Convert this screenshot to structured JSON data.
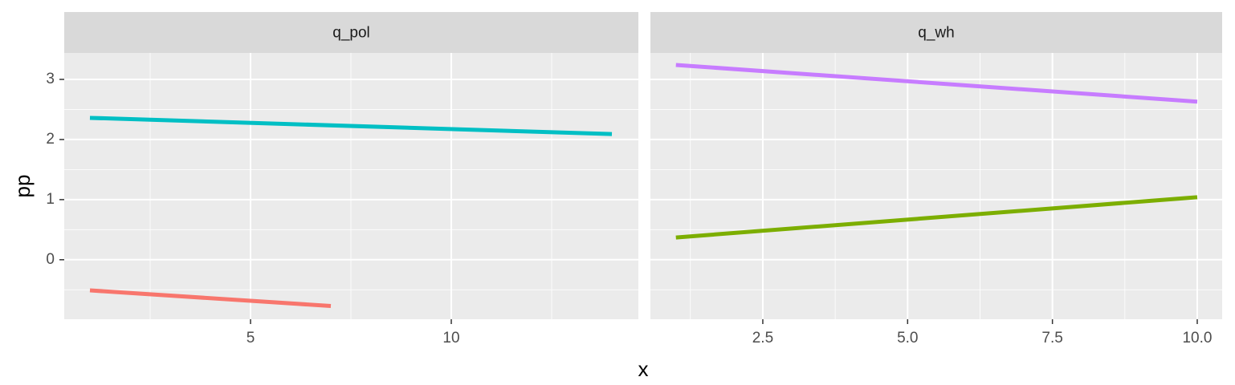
{
  "chart_data": [
    {
      "type": "line",
      "title": "q_pol",
      "series": [
        {
          "color": "#F8766D",
          "x": [
            1,
            7
          ],
          "values": [
            -0.51,
            -0.77
          ]
        },
        {
          "color": "#00BFC4",
          "x": [
            1,
            14
          ],
          "values": [
            2.36,
            2.09
          ]
        }
      ],
      "xlim": [
        0.36,
        14.66
      ],
      "xticks": [
        5,
        10
      ],
      "ylim": [
        -0.99,
        3.44
      ],
      "yticks": [
        0,
        1,
        2,
        3
      ]
    },
    {
      "type": "line",
      "title": "q_wh",
      "series": [
        {
          "color": "#C77CFF",
          "x": [
            1,
            10
          ],
          "values": [
            3.24,
            2.63
          ]
        },
        {
          "color": "#7CAE00",
          "x": [
            1,
            10
          ],
          "values": [
            0.37,
            1.04
          ]
        }
      ],
      "xlim": [
        0.56,
        10.43
      ],
      "xticks": [
        2.5,
        {
          "value": 5,
          "label": "5.0"
        },
        7.5,
        {
          "value": 10,
          "label": "10.0"
        }
      ],
      "ylim": [
        -0.99,
        3.44
      ],
      "yticks": [
        0,
        1,
        2,
        3
      ]
    }
  ],
  "xlabel": "x",
  "ylabel": "pp"
}
